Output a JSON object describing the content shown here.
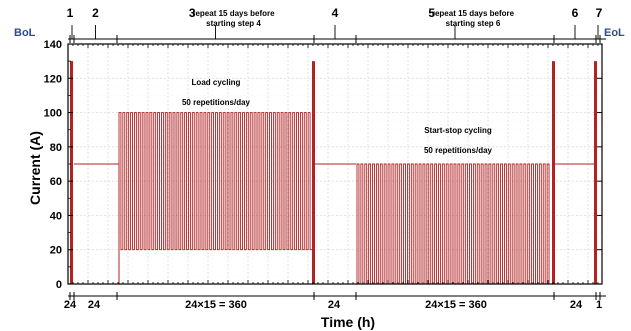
{
  "chart_data": {
    "type": "line",
    "title": "",
    "xlabel": "Time (h)",
    "ylabel": "Current (A)",
    "ylim": [
      0,
      140
    ],
    "yticks": [
      0,
      20,
      40,
      60,
      80,
      100,
      120,
      140
    ],
    "grid": true,
    "series_color": "#b22222",
    "x_segment_labels": [
      "24",
      "24",
      "24×15 = 360",
      "24",
      "24×15 = 360",
      "24",
      "1"
    ],
    "steps": [
      {
        "number": "1",
        "note": ""
      },
      {
        "number": "2",
        "note": ""
      },
      {
        "number": "3",
        "note": "repeat 15 days before\nstarting step 4"
      },
      {
        "number": "4",
        "note": ""
      },
      {
        "number": "5",
        "note": "repeat 15 days before\nstarting step 6"
      },
      {
        "number": "6",
        "note": ""
      },
      {
        "number": "7",
        "note": ""
      }
    ],
    "start_label": "BoL",
    "end_label": "EoL",
    "annotations": [
      {
        "text": "Load cycling\n50 repetitions/day"
      },
      {
        "text": "Start-stop cycling\n50 repetitions/day"
      }
    ],
    "segments": [
      {
        "step": "1",
        "profile": "pulse",
        "current": 130,
        "duration_h": 24
      },
      {
        "step": "2",
        "profile": "constant",
        "current": 70,
        "duration_h": 24
      },
      {
        "step": "3",
        "profile": "load_cycling",
        "low": 20,
        "high": 100,
        "repetitions_per_day": 50,
        "duration_h": 360
      },
      {
        "step": "4",
        "profile": "pulse_then_constant",
        "pulse_current": 130,
        "current": 70,
        "duration_h": 24
      },
      {
        "step": "5",
        "profile": "start_stop",
        "low": 0,
        "high": 70,
        "repetitions_per_day": 50,
        "duration_h": 360
      },
      {
        "step": "6",
        "profile": "pulse_then_constant",
        "pulse_current": 130,
        "current": 70,
        "duration_h": 24
      },
      {
        "step": "7",
        "profile": "pulse",
        "current": 130,
        "duration_h": 1
      }
    ]
  }
}
